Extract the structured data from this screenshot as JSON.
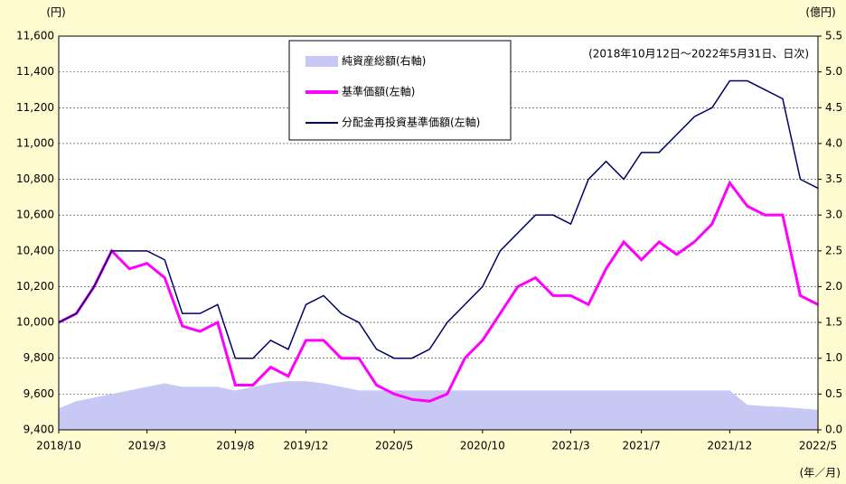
{
  "chart_data": {
    "type": "line",
    "annotation": "(2018年10月12日～2022年5月31日、日次)",
    "y_label": "(円)",
    "y2_label": "(億円)",
    "x_label": "(年／月)",
    "categories": [
      "2018/10",
      null,
      null,
      null,
      null,
      "2019/3",
      null,
      null,
      null,
      null,
      "2019/8",
      null,
      null,
      null,
      "2019/12",
      null,
      null,
      null,
      null,
      "2020/5",
      null,
      null,
      null,
      null,
      "2020/10",
      null,
      null,
      null,
      null,
      "2021/3",
      null,
      null,
      null,
      "2021/7",
      null,
      null,
      null,
      null,
      "2021/12",
      null,
      null,
      null,
      null,
      "2022/5"
    ],
    "series": [
      {
        "name": "純資産総額(右軸)",
        "type": "area",
        "axis": "y2",
        "color": "#c8c8f4",
        "values": [
          0.3,
          0.4,
          0.45,
          0.5,
          0.55,
          0.6,
          0.65,
          0.6,
          0.6,
          0.6,
          0.55,
          0.6,
          0.65,
          0.68,
          0.68,
          0.65,
          0.6,
          0.55,
          0.55,
          0.55,
          0.55,
          0.55,
          0.55,
          0.55,
          0.55,
          0.55,
          0.55,
          0.55,
          0.55,
          0.55,
          0.55,
          0.55,
          0.55,
          0.55,
          0.55,
          0.55,
          0.55,
          0.55,
          0.55,
          0.35,
          0.33,
          0.32,
          0.3,
          0.28
        ]
      },
      {
        "name": "基準価額(左軸)",
        "type": "line",
        "color": "#ff00ff",
        "values": [
          10000,
          10050,
          10200,
          10400,
          10300,
          10330,
          10250,
          9980,
          9950,
          10000,
          9650,
          9650,
          9750,
          9700,
          9900,
          9900,
          9800,
          9800,
          9650,
          9600,
          9570,
          9560,
          9600,
          9800,
          9900,
          10050,
          10200,
          10250,
          10150,
          10150,
          10100,
          10300,
          10450,
          10350,
          10450,
          10380,
          10450,
          10550,
          10780,
          10650,
          10600,
          10600,
          10150,
          10100
        ]
      },
      {
        "name": "分配金再投資基準価額(左軸)",
        "type": "line",
        "color": "#000066",
        "values": [
          10000,
          10050,
          10200,
          10400,
          10400,
          10400,
          10350,
          10050,
          10050,
          10100,
          9800,
          9800,
          9900,
          9850,
          10100,
          10150,
          10050,
          10000,
          9850,
          9800,
          9800,
          9850,
          10000,
          10100,
          10200,
          10400,
          10500,
          10600,
          10600,
          10550,
          10800,
          10900,
          10800,
          10950,
          10950,
          11050,
          11150,
          11200,
          11350,
          11350,
          11300,
          11250,
          10800,
          10750
        ]
      }
    ],
    "ylim": [
      9400,
      11600
    ],
    "yticks": [
      {
        "value": 9400,
        "label": "9,400"
      },
      {
        "value": 9600,
        "label": "9,600"
      },
      {
        "value": 9800,
        "label": "9,800"
      },
      {
        "value": 10000,
        "label": "10,000"
      },
      {
        "value": 10200,
        "label": "10,200"
      },
      {
        "value": 10400,
        "label": "10,400"
      },
      {
        "value": 10600,
        "label": "10,600"
      },
      {
        "value": 10800,
        "label": "10,800"
      },
      {
        "value": 11000,
        "label": "11,000"
      },
      {
        "value": 11200,
        "label": "11,200"
      },
      {
        "value": 11400,
        "label": "11,400"
      },
      {
        "value": 11600,
        "label": "11,600"
      }
    ],
    "y2lim": [
      0,
      5.5
    ],
    "y2ticks": [
      {
        "value": 0,
        "label": "0.0"
      },
      0.5,
      {
        "value": 1,
        "label": "1.0"
      },
      1.5,
      {
        "value": 2,
        "label": "2.0"
      },
      2.5,
      {
        "value": 3,
        "label": "3.0"
      },
      3.5,
      {
        "value": 4,
        "label": "4.0"
      },
      4.5,
      {
        "value": 5,
        "label": "5.0"
      },
      5.5
    ],
    "grid": true
  }
}
